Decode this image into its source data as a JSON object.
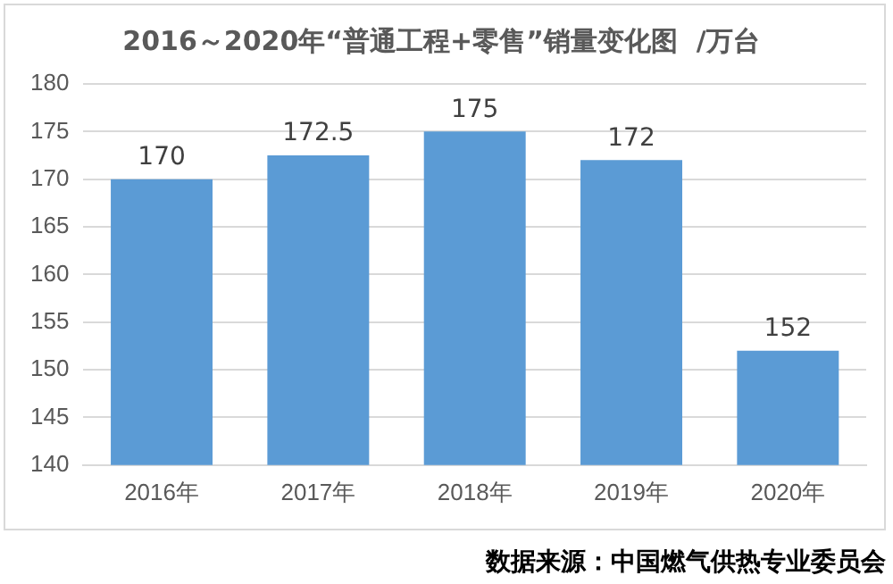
{
  "chart_data": {
    "type": "bar",
    "title": "2016～2020年“普通工程+零售”销量变化图  /万台",
    "categories": [
      "2016年",
      "2017年",
      "2018年",
      "2019年",
      "2020年"
    ],
    "values": [
      170,
      172.5,
      175,
      172,
      152
    ],
    "color": "#5b9bd5",
    "ylim": [
      140,
      180
    ],
    "yticks": [
      140,
      145,
      150,
      155,
      160,
      165,
      170,
      175,
      180
    ],
    "grid": "y",
    "legend": false,
    "data_labels": true,
    "annotations": [
      "数据来源：中国燃气供热专业委员会"
    ]
  }
}
